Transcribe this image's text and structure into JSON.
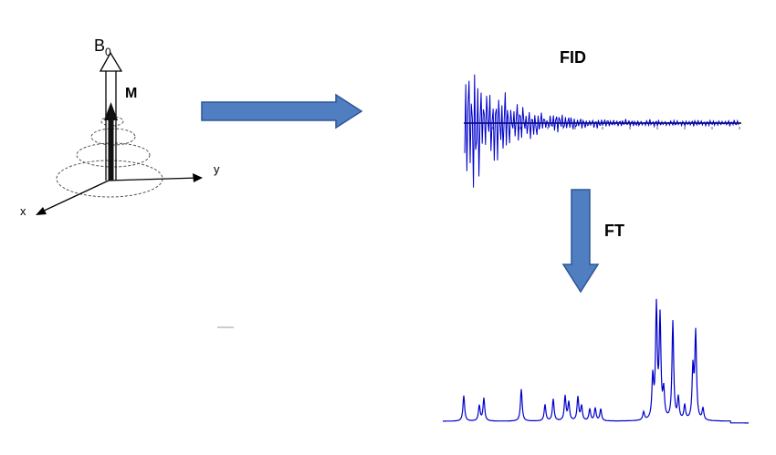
{
  "diagram": {
    "magnetization": {
      "field_label": "B",
      "field_subscript": "0",
      "vector_label": "M",
      "axis_x_label": "x",
      "axis_y_label": "y"
    },
    "fid": {
      "title": "FID"
    },
    "transform": {
      "label": "FT"
    }
  },
  "colors": {
    "arrow_fill": "#4f7fc1",
    "arrow_stroke": "#2f5597",
    "signal": "#0000cc",
    "ink": "#000000"
  },
  "icons": {
    "process_arrow": "right-block-arrow",
    "transform_arrow": "down-block-arrow"
  }
}
